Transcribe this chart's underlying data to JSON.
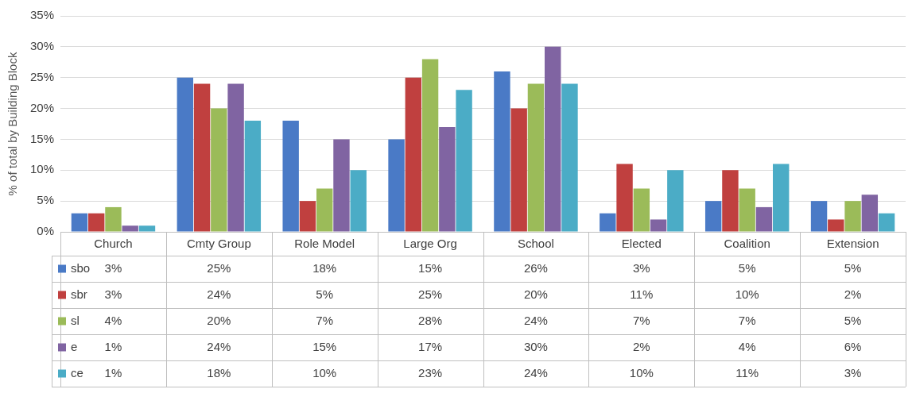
{
  "chart_data": {
    "type": "bar",
    "ylabel": "% of total by Building Block",
    "categories": [
      "Church",
      "Cmty Group",
      "Role Model",
      "Large Org",
      "School",
      "Elected",
      "Coalition",
      "Extension"
    ],
    "series": [
      {
        "name": "sbo",
        "color": "#4a7ac6",
        "values": [
          3,
          25,
          18,
          15,
          26,
          3,
          5,
          5
        ],
        "value_labels": [
          "3%",
          "25%",
          "18%",
          "15%",
          "26%",
          "3%",
          "5%",
          "5%"
        ]
      },
      {
        "name": "sbr",
        "color": "#c0403f",
        "values": [
          3,
          24,
          5,
          25,
          20,
          11,
          10,
          2
        ],
        "value_labels": [
          "3%",
          "24%",
          "5%",
          "25%",
          "20%",
          "11%",
          "10%",
          "2%"
        ]
      },
      {
        "name": "sl",
        "color": "#9bbb59",
        "values": [
          4,
          20,
          7,
          28,
          24,
          7,
          7,
          5
        ],
        "value_labels": [
          "4%",
          "20%",
          "7%",
          "28%",
          "24%",
          "7%",
          "7%",
          "5%"
        ]
      },
      {
        "name": "e",
        "color": "#8064a2",
        "values": [
          1,
          24,
          15,
          17,
          30,
          2,
          4,
          6
        ],
        "value_labels": [
          "1%",
          "24%",
          "15%",
          "17%",
          "30%",
          "2%",
          "4%",
          "6%"
        ]
      },
      {
        "name": "ce",
        "color": "#4bacc6",
        "values": [
          1,
          18,
          10,
          23,
          24,
          10,
          11,
          3
        ],
        "value_labels": [
          "1%",
          "18%",
          "10%",
          "23%",
          "24%",
          "10%",
          "11%",
          "3%"
        ]
      }
    ],
    "ylim": [
      0,
      35
    ],
    "yticks": [
      {
        "value": 0,
        "label": "0%"
      },
      {
        "value": 5,
        "label": "5%"
      },
      {
        "value": 10,
        "label": "10%"
      },
      {
        "value": 15,
        "label": "15%"
      },
      {
        "value": 20,
        "label": "20%"
      },
      {
        "value": 25,
        "label": "25%"
      },
      {
        "value": 30,
        "label": "30%"
      },
      {
        "value": 35,
        "label": "35%"
      }
    ],
    "grid": "y",
    "legend": "bottom"
  }
}
